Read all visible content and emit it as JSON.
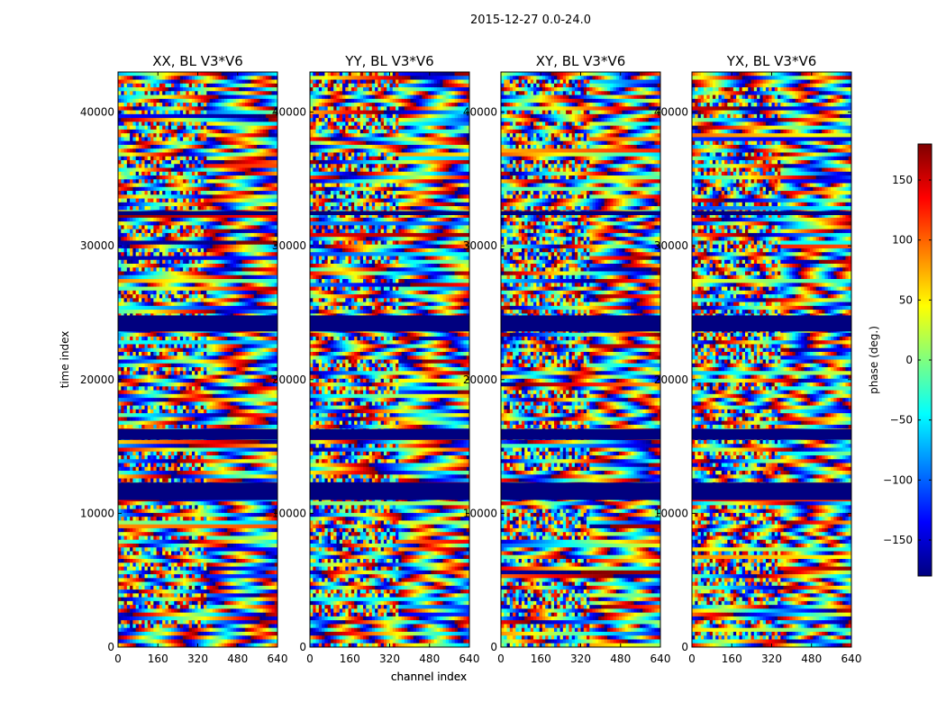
{
  "figure": {
    "suptitle": "2015-12-27 0.0-24.0"
  },
  "chart_data": [
    {
      "type": "heatmap",
      "title": "XX, BL V3*V6",
      "xlabel": "channel index",
      "ylabel": "time index",
      "xlim": [
        0,
        640
      ],
      "ylim": [
        0,
        43000
      ],
      "xticks": [
        0,
        160,
        320,
        480,
        640
      ],
      "yticks": [
        0,
        10000,
        20000,
        30000,
        40000
      ],
      "value_range": [
        -180,
        180
      ],
      "flagged_time_bands": [
        [
          11000,
          12300
        ],
        [
          15500,
          16300
        ],
        [
          23600,
          24800
        ],
        [
          32300,
          32600
        ]
      ]
    },
    {
      "type": "heatmap",
      "title": "YY, BL V3*V6",
      "xlabel": "channel index",
      "ylabel": "",
      "xlim": [
        0,
        640
      ],
      "ylim": [
        0,
        43000
      ],
      "xticks": [
        0,
        160,
        320,
        480,
        640
      ],
      "yticks": [
        0,
        10000,
        20000,
        30000,
        40000
      ],
      "value_range": [
        -180,
        180
      ],
      "flagged_time_bands": [
        [
          11000,
          12300
        ],
        [
          15500,
          16300
        ],
        [
          23600,
          24800
        ],
        [
          32300,
          32600
        ]
      ]
    },
    {
      "type": "heatmap",
      "title": "XY, BL V3*V6",
      "xlabel": "",
      "ylabel": "",
      "xlim": [
        0,
        640
      ],
      "ylim": [
        0,
        43000
      ],
      "xticks": [
        0,
        160,
        320,
        480,
        640
      ],
      "yticks": [
        0,
        10000,
        20000,
        30000,
        40000
      ],
      "value_range": [
        -180,
        180
      ],
      "flagged_time_bands": [
        [
          11000,
          12300
        ],
        [
          15500,
          16300
        ],
        [
          23600,
          24800
        ],
        [
          32300,
          32600
        ]
      ]
    },
    {
      "type": "heatmap",
      "title": "YX, BL V3*V6",
      "xlabel": "",
      "ylabel": "",
      "xlim": [
        0,
        640
      ],
      "ylim": [
        0,
        43000
      ],
      "xticks": [
        0,
        160,
        320,
        480,
        640
      ],
      "yticks": [
        0,
        10000,
        20000,
        30000,
        40000
      ],
      "value_range": [
        -180,
        180
      ],
      "flagged_time_bands": [
        [
          11000,
          12300
        ],
        [
          15500,
          16300
        ],
        [
          23600,
          24800
        ],
        [
          32300,
          32600
        ]
      ]
    }
  ],
  "colorbar": {
    "label": "phase (deg.)",
    "range": [
      -180,
      180
    ],
    "ticks": [
      150,
      100,
      50,
      0,
      -50,
      -100,
      -150
    ],
    "tick_labels": [
      "150",
      "100",
      "50",
      "0",
      "−50",
      "−100",
      "−150"
    ],
    "colormap": "jet",
    "colors": [
      "#00007f",
      "#0000ff",
      "#007fff",
      "#00ffff",
      "#7fff7f",
      "#ffff00",
      "#ff7f00",
      "#ff0000",
      "#7f0000"
    ],
    "flag_color": "#00007f"
  }
}
